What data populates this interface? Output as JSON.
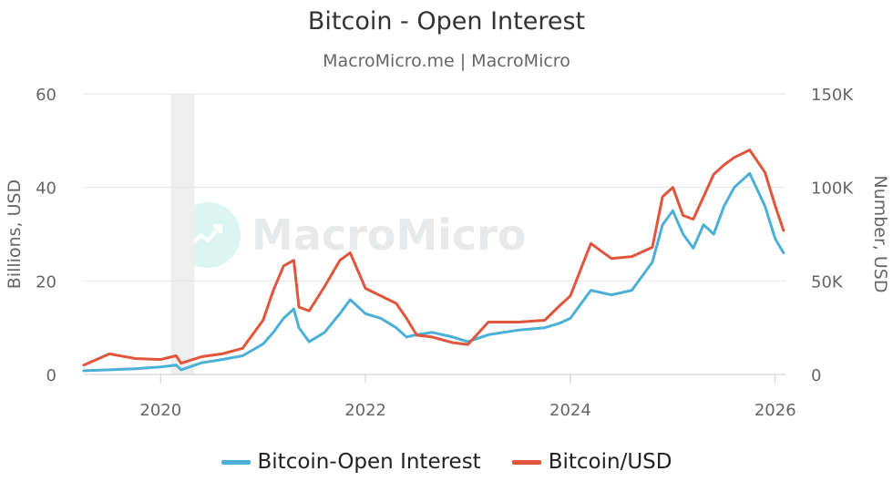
{
  "header": {
    "title": "Bitcoin - Open Interest",
    "subtitle": "MacroMicro.me | MacroMicro"
  },
  "watermark": {
    "text": "MacroMicro",
    "icon": "chart-logo-icon"
  },
  "chart_data": {
    "type": "line",
    "title": "Bitcoin - Open Interest",
    "subtitle": "MacroMicro.me | MacroMicro",
    "y_left": {
      "label": "Billions, USD",
      "min": 0,
      "max": 60,
      "ticks": [
        "0",
        "20",
        "40",
        "60"
      ]
    },
    "y_right": {
      "label": "Number, USD",
      "min": 0,
      "max": 150000,
      "ticks": [
        "0",
        "50K",
        "100K",
        "150K"
      ]
    },
    "x_axis": {
      "min": 2019.25,
      "max": 2026.1,
      "ticks": [
        "2020",
        "2022",
        "2024",
        "2026"
      ]
    },
    "grid": true,
    "legend_position": "bottom",
    "shaded_period": [
      2020.1,
      2020.33
    ],
    "series": [
      {
        "name": "Bitcoin-Open Interest",
        "axis": "left",
        "color": "#4bafd8",
        "x": [
          2019.25,
          2019.5,
          2019.75,
          2020.0,
          2020.15,
          2020.2,
          2020.4,
          2020.6,
          2020.8,
          2021.0,
          2021.1,
          2021.2,
          2021.3,
          2021.35,
          2021.45,
          2021.6,
          2021.75,
          2021.85,
          2022.0,
          2022.15,
          2022.3,
          2022.4,
          2022.5,
          2022.65,
          2022.85,
          2023.0,
          2023.2,
          2023.5,
          2023.75,
          2023.9,
          2024.0,
          2024.2,
          2024.4,
          2024.6,
          2024.8,
          2024.9,
          2025.0,
          2025.1,
          2025.2,
          2025.3,
          2025.4,
          2025.5,
          2025.6,
          2025.75,
          2025.9,
          2026.0,
          2026.08
        ],
        "values": [
          0.8,
          1.0,
          1.2,
          1.6,
          2.0,
          1.0,
          2.5,
          3.2,
          4.0,
          6.5,
          9.0,
          12.0,
          14.0,
          10.0,
          7.0,
          9.0,
          13.0,
          16.0,
          13.0,
          12.0,
          10.0,
          8.0,
          8.5,
          9.0,
          8.0,
          7.0,
          8.5,
          9.5,
          10.0,
          11.0,
          12.0,
          18.0,
          17.0,
          18.0,
          24.0,
          32.0,
          35.0,
          30.0,
          27.0,
          32.0,
          30.0,
          36.0,
          40.0,
          43.0,
          36.0,
          29.0,
          26.0
        ]
      },
      {
        "name": "Bitcoin/USD",
        "axis": "right",
        "color": "#e0553b",
        "x": [
          2019.25,
          2019.5,
          2019.75,
          2020.0,
          2020.15,
          2020.2,
          2020.4,
          2020.6,
          2020.8,
          2021.0,
          2021.1,
          2021.2,
          2021.3,
          2021.35,
          2021.45,
          2021.6,
          2021.75,
          2021.85,
          2022.0,
          2022.15,
          2022.3,
          2022.4,
          2022.5,
          2022.65,
          2022.85,
          2023.0,
          2023.2,
          2023.5,
          2023.75,
          2023.9,
          2024.0,
          2024.2,
          2024.4,
          2024.6,
          2024.8,
          2024.9,
          2025.0,
          2025.1,
          2025.2,
          2025.3,
          2025.4,
          2025.5,
          2025.6,
          2025.75,
          2025.9,
          2026.0,
          2026.08
        ],
        "values": [
          5000,
          11000,
          8500,
          8000,
          10000,
          6000,
          9500,
          11000,
          14000,
          29000,
          45000,
          58000,
          61000,
          36000,
          34000,
          47000,
          61000,
          65000,
          46000,
          42000,
          38000,
          30000,
          21000,
          20000,
          17000,
          16000,
          28000,
          28000,
          29000,
          37000,
          42000,
          70000,
          62000,
          63000,
          68000,
          95000,
          100000,
          85000,
          83000,
          95000,
          107000,
          112000,
          116000,
          120000,
          108000,
          90000,
          77000
        ]
      }
    ]
  }
}
